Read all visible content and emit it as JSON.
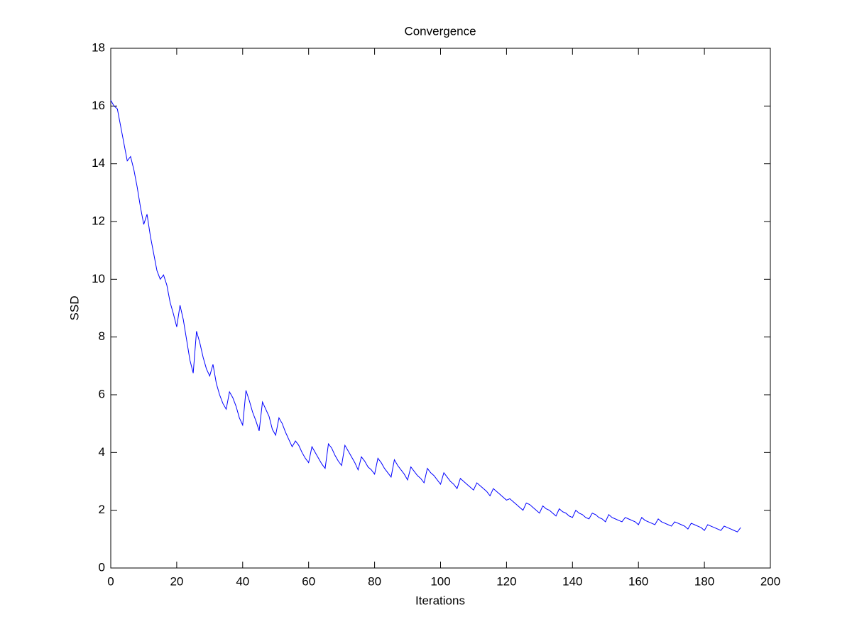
{
  "chart_data": {
    "type": "line",
    "title": "Convergence",
    "x_label": "Iterations",
    "y_label": "SSD",
    "x": [
      0,
      1,
      2,
      3,
      4,
      5,
      6,
      7,
      8,
      9,
      10,
      11,
      12,
      13,
      14,
      15,
      16,
      17,
      18,
      19,
      20,
      21,
      22,
      23,
      24,
      25,
      26,
      27,
      28,
      29,
      30,
      31,
      32,
      33,
      34,
      35,
      36,
      37,
      38,
      39,
      40,
      41,
      42,
      43,
      44,
      45,
      46,
      47,
      48,
      49,
      50,
      51,
      52,
      53,
      54,
      55,
      56,
      57,
      58,
      59,
      60,
      61,
      62,
      63,
      64,
      65,
      66,
      67,
      68,
      69,
      70,
      71,
      72,
      73,
      74,
      75,
      76,
      77,
      78,
      79,
      80,
      81,
      82,
      83,
      84,
      85,
      86,
      87,
      88,
      89,
      90,
      91,
      92,
      93,
      94,
      95,
      96,
      97,
      98,
      99,
      100,
      101,
      102,
      103,
      104,
      105,
      106,
      107,
      108,
      109,
      110,
      111,
      112,
      113,
      114,
      115,
      116,
      117,
      118,
      119,
      120,
      121,
      122,
      123,
      124,
      125,
      126,
      127,
      128,
      129,
      130,
      131,
      132,
      133,
      134,
      135,
      136,
      137,
      138,
      139,
      140,
      141,
      142,
      143,
      144,
      145,
      146,
      147,
      148,
      149,
      150,
      151,
      152,
      153,
      154,
      155,
      156,
      157,
      158,
      159,
      160,
      161,
      162,
      163,
      164,
      165,
      166,
      167,
      168,
      169,
      170,
      171,
      172,
      173,
      174,
      175,
      176,
      177,
      178,
      179,
      180,
      181,
      182,
      183,
      184,
      185,
      186,
      187,
      188,
      189,
      190,
      191
    ],
    "values": [
      16.2,
      16.0,
      15.9,
      15.3,
      14.7,
      14.1,
      14.25,
      13.8,
      13.2,
      12.5,
      11.9,
      12.25,
      11.5,
      10.9,
      10.3,
      10.0,
      10.15,
      9.8,
      9.2,
      8.8,
      8.35,
      9.1,
      8.6,
      7.9,
      7.2,
      6.75,
      8.2,
      7.8,
      7.3,
      6.9,
      6.65,
      7.05,
      6.4,
      6.0,
      5.7,
      5.5,
      6.1,
      5.9,
      5.6,
      5.2,
      4.95,
      6.15,
      5.8,
      5.4,
      5.1,
      4.75,
      5.75,
      5.5,
      5.25,
      4.8,
      4.6,
      5.2,
      5.0,
      4.7,
      4.45,
      4.2,
      4.4,
      4.25,
      4.0,
      3.8,
      3.65,
      4.2,
      4.0,
      3.8,
      3.6,
      3.45,
      4.3,
      4.15,
      3.9,
      3.7,
      3.55,
      4.25,
      4.05,
      3.85,
      3.65,
      3.4,
      3.85,
      3.7,
      3.5,
      3.4,
      3.25,
      3.8,
      3.65,
      3.45,
      3.3,
      3.15,
      3.75,
      3.55,
      3.4,
      3.25,
      3.05,
      3.5,
      3.35,
      3.2,
      3.1,
      2.95,
      3.45,
      3.3,
      3.2,
      3.05,
      2.9,
      3.3,
      3.15,
      3.0,
      2.9,
      2.75,
      3.1,
      3.0,
      2.9,
      2.8,
      2.7,
      2.95,
      2.85,
      2.75,
      2.65,
      2.5,
      2.75,
      2.65,
      2.55,
      2.45,
      2.35,
      2.4,
      2.3,
      2.2,
      2.1,
      2.0,
      2.25,
      2.2,
      2.1,
      2.0,
      1.9,
      2.15,
      2.05,
      2.0,
      1.9,
      1.8,
      2.05,
      1.95,
      1.9,
      1.8,
      1.75,
      2.0,
      1.9,
      1.85,
      1.75,
      1.7,
      1.9,
      1.85,
      1.75,
      1.7,
      1.6,
      1.85,
      1.75,
      1.7,
      1.65,
      1.6,
      1.75,
      1.7,
      1.65,
      1.6,
      1.5,
      1.75,
      1.65,
      1.6,
      1.55,
      1.5,
      1.7,
      1.6,
      1.55,
      1.5,
      1.45,
      1.6,
      1.55,
      1.5,
      1.45,
      1.35,
      1.55,
      1.5,
      1.45,
      1.4,
      1.3,
      1.5,
      1.45,
      1.4,
      1.35,
      1.3,
      1.45,
      1.4,
      1.35,
      1.3,
      1.25,
      1.4
    ],
    "color": "#0000ff",
    "xlim": [
      0,
      200
    ],
    "xticks": [
      0,
      20,
      40,
      60,
      80,
      100,
      120,
      140,
      160,
      180,
      200
    ],
    "ylim": [
      0,
      18
    ],
    "yticks": [
      0,
      2,
      4,
      6,
      8,
      10,
      12,
      14,
      16,
      18
    ]
  }
}
